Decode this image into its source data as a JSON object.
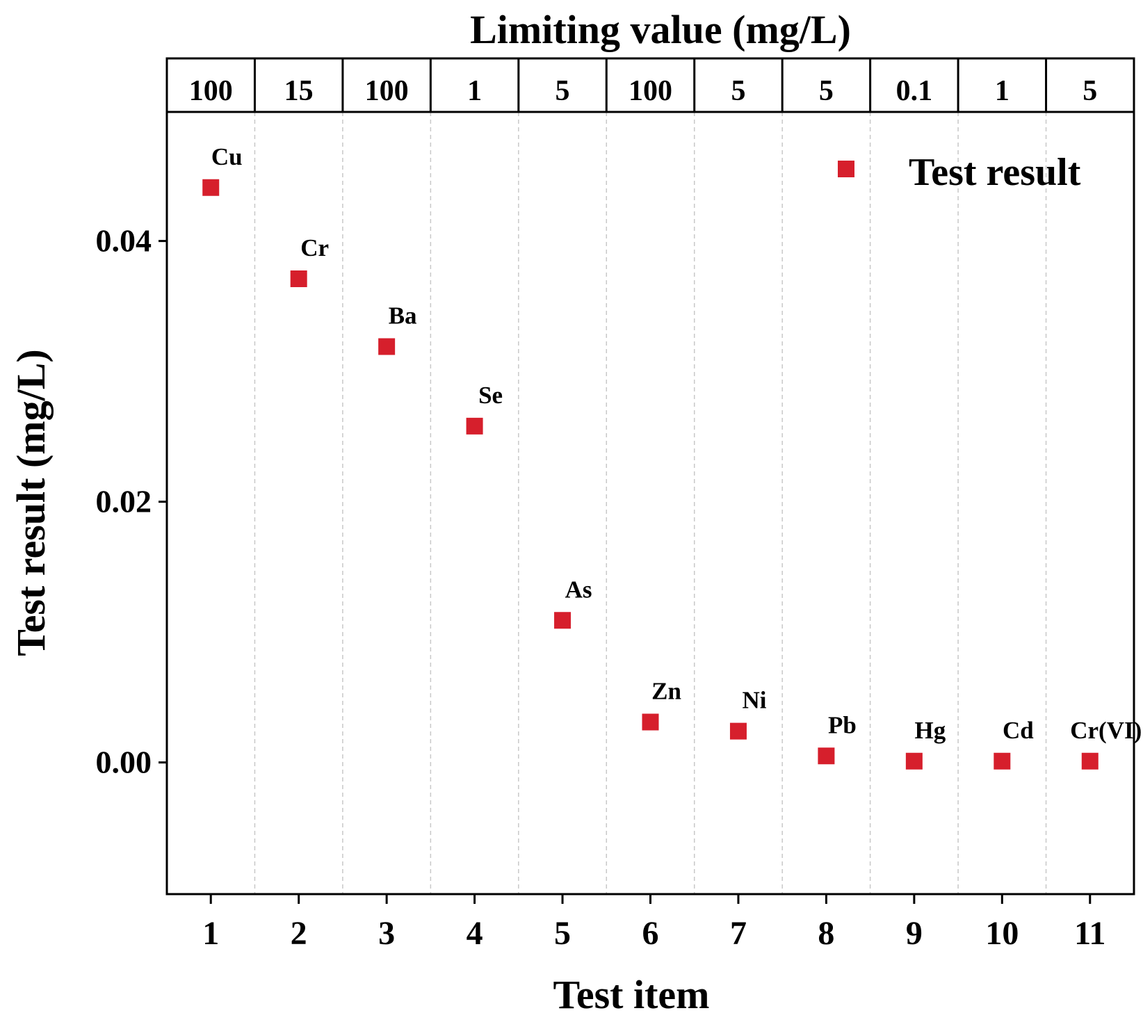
{
  "chart_data": {
    "type": "scatter",
    "top_title": "Limiting value (mg/L)",
    "xlabel": "Test item",
    "ylabel": "Test result (mg/L)",
    "x": [
      1,
      2,
      3,
      4,
      5,
      6,
      7,
      8,
      9,
      10,
      11
    ],
    "x_tick_labels": [
      "1",
      "2",
      "3",
      "4",
      "5",
      "6",
      "7",
      "8",
      "9",
      "10",
      "11"
    ],
    "limiting_values": [
      "100",
      "15",
      "100",
      "1",
      "5",
      "100",
      "5",
      "5",
      "0.1",
      "1",
      "5"
    ],
    "point_labels": [
      "Cu",
      "Cr",
      "Ba",
      "Se",
      "As",
      "Zn",
      "Ni",
      "Pb",
      "Hg",
      "Cd",
      "Cr(VI)"
    ],
    "series": [
      {
        "name": "Test result",
        "color": "#d61f2c",
        "values": [
          0.0441,
          0.0371,
          0.0319,
          0.0258,
          0.0109,
          0.0031,
          0.0024,
          0.0005,
          0.0001,
          0.0001,
          0.0001
        ]
      }
    ],
    "xlim": [
      0.5,
      11.5
    ],
    "ylim": [
      -0.0101,
      0.0499
    ],
    "y_ticks": [
      0.0,
      0.02,
      0.04
    ],
    "y_tick_labels": [
      "0.00",
      "0.02",
      "0.04"
    ],
    "legend_position": "top-right",
    "grid": "vertical dashed separators between items"
  }
}
